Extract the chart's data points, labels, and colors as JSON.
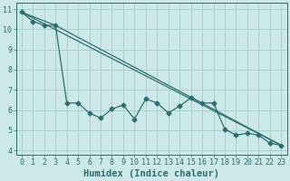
{
  "xlabel": "Humidex (Indice chaleur)",
  "ylabel": "",
  "bg_color": "#cce8e8",
  "grid_color": "#aacfcf",
  "line_color": "#2e6e6e",
  "xlim": [
    -0.5,
    23.5
  ],
  "ylim": [
    3.8,
    11.3
  ],
  "yticks": [
    4,
    5,
    6,
    7,
    8,
    9,
    10,
    11
  ],
  "xticks": [
    0,
    1,
    2,
    3,
    4,
    5,
    6,
    7,
    8,
    9,
    10,
    11,
    12,
    13,
    14,
    15,
    16,
    17,
    18,
    19,
    20,
    21,
    22,
    23
  ],
  "series1_x": [
    0,
    1,
    2,
    3,
    4,
    5,
    6,
    7,
    8,
    9,
    10,
    11,
    12,
    13,
    14,
    15,
    16,
    17,
    18,
    19,
    20,
    21,
    22,
    23
  ],
  "series1_y": [
    10.85,
    10.4,
    10.2,
    10.2,
    6.35,
    6.35,
    5.85,
    5.6,
    6.05,
    6.25,
    5.55,
    6.55,
    6.35,
    5.85,
    6.2,
    6.6,
    6.35,
    6.35,
    5.05,
    4.75,
    4.85,
    4.75,
    4.35,
    4.25
  ],
  "series2_x": [
    0,
    23
  ],
  "series2_y": [
    10.85,
    4.25
  ],
  "series3_x": [
    0,
    3,
    23
  ],
  "series3_y": [
    10.85,
    10.2,
    4.25
  ],
  "font_family": "monospace",
  "tick_fontsize": 6,
  "label_fontsize": 7.5
}
